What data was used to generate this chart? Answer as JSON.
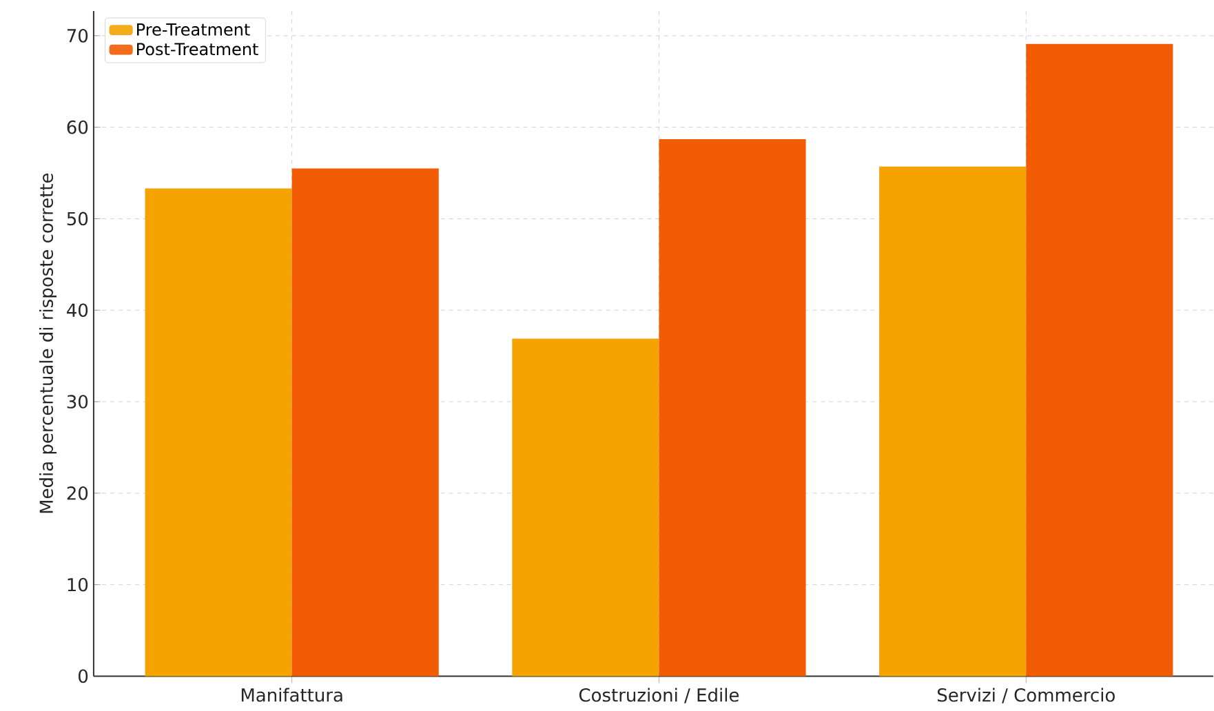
{
  "chart_data": {
    "type": "bar",
    "ylabel": "Media percentuale di risposte corrette",
    "categories": [
      "Manifattura",
      "Costruzioni / Edile",
      "Servizi / Commercio"
    ],
    "series": [
      {
        "name": "Pre-Treatment",
        "color": "#f4a300",
        "values": [
          53.3,
          36.9,
          55.7
        ]
      },
      {
        "name": "Post-Treatment",
        "color": "#f25c05",
        "values": [
          55.5,
          58.7,
          69.1
        ]
      }
    ],
    "ylim": [
      0,
      72.7
    ],
    "yticks": [
      0,
      10,
      20,
      30,
      40,
      50,
      60,
      70
    ],
    "grid": true,
    "legend": "top left"
  }
}
